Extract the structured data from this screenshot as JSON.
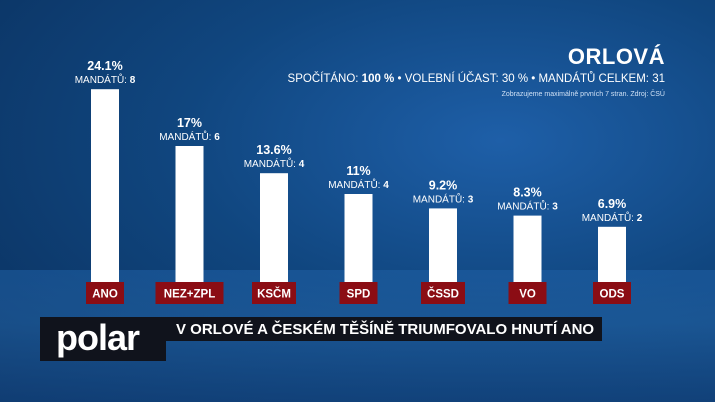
{
  "header": {
    "city": "ORLOVÁ",
    "stats_prefix": "SPOČÍTÁNO: ",
    "stats_counted": "100 %",
    "stats_suffix": " • VOLEBNÍ ÚČAST: 30 % • MANDÁTŮ CELKEM: 31",
    "note": "Zobrazujeme maximálně prvních 7 stran. Zdroj: ČSÚ"
  },
  "footer": {
    "logo": "polar",
    "headline": "V ORLOVÉ A ČESKÉM TĚŠÍNĚ TRIUMFOVALO HNUTÍ ANO"
  },
  "colors": {
    "bar": "#ffffff",
    "label_bg": "#8b0d14",
    "background": "#10467f"
  },
  "chart_data": {
    "type": "bar",
    "categories": [
      "ANO",
      "NEZ+ZPL",
      "KSČM",
      "SPD",
      "ČSSD",
      "VO",
      "ODS"
    ],
    "values": [
      24.1,
      17,
      13.6,
      11,
      9.2,
      8.3,
      6.9
    ],
    "value_labels": [
      "24.1%",
      "17%",
      "13.6%",
      "11%",
      "9.2%",
      "8.3%",
      "6.9%"
    ],
    "seats_label": "MANDÁTŮ:",
    "seats": [
      8,
      6,
      4,
      4,
      3,
      3,
      2
    ],
    "ylim": [
      0,
      25
    ]
  }
}
